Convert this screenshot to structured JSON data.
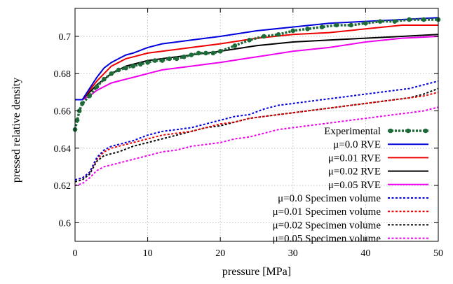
{
  "chart_data": {
    "type": "line",
    "title": "",
    "xlabel": "pressure [MPa]",
    "ylabel": "pressed relative density",
    "xlim": [
      0,
      50
    ],
    "ylim": [
      0.59,
      0.715
    ],
    "xticks": [
      0,
      10,
      20,
      30,
      40,
      50
    ],
    "yticks": [
      0.6,
      0.62,
      0.64,
      0.66,
      0.68,
      0.7
    ],
    "xtick_labels": [
      "0",
      "10",
      "20",
      "30",
      "40",
      "50"
    ],
    "ytick_labels": [
      "0.6",
      "0.62",
      "0.64",
      "0.66",
      "0.68",
      "0.7"
    ],
    "grid": true,
    "legend_position": "bottom-right",
    "series": [
      {
        "name": "Experimental",
        "color": "#1e6b3a",
        "style": "dotted-markers",
        "x": [
          0,
          0.3,
          0.6,
          1,
          2,
          3,
          4,
          5,
          6,
          7,
          8,
          9,
          10,
          11,
          12,
          13,
          14,
          15,
          16,
          17,
          18,
          19,
          20,
          22,
          24,
          26,
          28,
          30,
          32,
          34,
          36,
          38,
          40,
          42,
          44,
          46,
          48,
          50
        ],
        "y": [
          0.65,
          0.655,
          0.66,
          0.664,
          0.668,
          0.673,
          0.677,
          0.68,
          0.682,
          0.683,
          0.684,
          0.685,
          0.686,
          0.687,
          0.687,
          0.688,
          0.688,
          0.689,
          0.69,
          0.691,
          0.691,
          0.691,
          0.692,
          0.695,
          0.698,
          0.7,
          0.701,
          0.703,
          0.704,
          0.705,
          0.706,
          0.706,
          0.707,
          0.708,
          0.708,
          0.709,
          0.709,
          0.709
        ]
      },
      {
        "name": "μ=0.0 RVE",
        "color": "#0000dd",
        "style": "solid",
        "x": [
          0,
          1,
          2,
          3,
          4,
          5,
          6,
          7,
          8,
          10,
          12,
          14,
          16,
          18,
          20,
          25,
          30,
          35,
          40,
          45,
          50
        ],
        "y": [
          0.666,
          0.666,
          0.672,
          0.678,
          0.683,
          0.686,
          0.688,
          0.69,
          0.691,
          0.694,
          0.696,
          0.697,
          0.698,
          0.699,
          0.7,
          0.703,
          0.705,
          0.707,
          0.708,
          0.709,
          0.71
        ]
      },
      {
        "name": "μ=0.01 RVE",
        "color": "#ee0000",
        "style": "solid",
        "x": [
          0,
          1,
          2,
          3,
          4,
          5,
          6,
          7,
          8,
          10,
          12,
          14,
          16,
          18,
          20,
          25,
          30,
          35,
          40,
          45,
          50
        ],
        "y": [
          0.666,
          0.666,
          0.671,
          0.676,
          0.68,
          0.684,
          0.686,
          0.688,
          0.689,
          0.691,
          0.692,
          0.693,
          0.694,
          0.695,
          0.696,
          0.699,
          0.701,
          0.702,
          0.704,
          0.706,
          0.706
        ]
      },
      {
        "name": "μ=0.02 RVE",
        "color": "#000000",
        "style": "solid",
        "x": [
          0,
          1,
          2,
          3,
          4,
          5,
          6,
          7,
          8,
          10,
          12,
          14,
          16,
          18,
          20,
          25,
          30,
          35,
          40,
          45,
          50
        ],
        "y": [
          0.666,
          0.666,
          0.67,
          0.674,
          0.677,
          0.68,
          0.682,
          0.684,
          0.685,
          0.687,
          0.688,
          0.689,
          0.69,
          0.691,
          0.692,
          0.695,
          0.697,
          0.698,
          0.699,
          0.7,
          0.701
        ]
      },
      {
        "name": "μ=0.05 RVE",
        "color": "#ee00ee",
        "style": "solid",
        "x": [
          0,
          1,
          2,
          3,
          4,
          5,
          6,
          7,
          8,
          10,
          12,
          14,
          16,
          18,
          20,
          25,
          30,
          35,
          40,
          45,
          50
        ],
        "y": [
          0.666,
          0.666,
          0.668,
          0.671,
          0.673,
          0.675,
          0.676,
          0.677,
          0.678,
          0.68,
          0.682,
          0.683,
          0.684,
          0.685,
          0.686,
          0.689,
          0.692,
          0.694,
          0.697,
          0.699,
          0.7
        ]
      },
      {
        "name": "μ=0.0 Specimen volume",
        "color": "#0000dd",
        "style": "dotted",
        "x": [
          0,
          1,
          2,
          3,
          4,
          5,
          6,
          8,
          10,
          12,
          14,
          16,
          18,
          20,
          22,
          24,
          26,
          28,
          30,
          32,
          34,
          36,
          38,
          40,
          42,
          44,
          46,
          48,
          50
        ],
        "y": [
          0.623,
          0.624,
          0.627,
          0.635,
          0.639,
          0.641,
          0.642,
          0.644,
          0.647,
          0.649,
          0.65,
          0.651,
          0.653,
          0.655,
          0.657,
          0.658,
          0.661,
          0.663,
          0.664,
          0.665,
          0.666,
          0.667,
          0.668,
          0.669,
          0.67,
          0.671,
          0.672,
          0.674,
          0.676
        ]
      },
      {
        "name": "μ=0.01 Specimen volume",
        "color": "#ee0000",
        "style": "dotted",
        "x": [
          0,
          1,
          2,
          3,
          4,
          5,
          6,
          8,
          10,
          12,
          14,
          16,
          18,
          20,
          22,
          24,
          26,
          28,
          30,
          32,
          34,
          36,
          38,
          40,
          42,
          44,
          46,
          48,
          50
        ],
        "y": [
          0.623,
          0.624,
          0.627,
          0.634,
          0.638,
          0.64,
          0.641,
          0.643,
          0.645,
          0.647,
          0.648,
          0.649,
          0.651,
          0.653,
          0.654,
          0.656,
          0.657,
          0.658,
          0.659,
          0.66,
          0.661,
          0.662,
          0.663,
          0.664,
          0.665,
          0.666,
          0.667,
          0.668,
          0.67
        ]
      },
      {
        "name": "μ=0.02 Specimen volume",
        "color": "#000000",
        "style": "dotted",
        "x": [
          0,
          1,
          2,
          3,
          4,
          5,
          6,
          8,
          10,
          12,
          14,
          16,
          18,
          20,
          22,
          24,
          26,
          28,
          30,
          32,
          34,
          36,
          38,
          40,
          42,
          44,
          46,
          48,
          50
        ],
        "y": [
          0.622,
          0.623,
          0.626,
          0.633,
          0.636,
          0.637,
          0.638,
          0.641,
          0.643,
          0.645,
          0.647,
          0.649,
          0.651,
          0.652,
          0.654,
          0.656,
          0.657,
          0.658,
          0.659,
          0.66,
          0.661,
          0.662,
          0.663,
          0.664,
          0.665,
          0.666,
          0.667,
          0.669,
          0.672
        ]
      },
      {
        "name": "μ=0.05 Specimen volume",
        "color": "#ee00ee",
        "style": "dotted",
        "x": [
          0,
          1,
          2,
          3,
          4,
          5,
          6,
          8,
          10,
          12,
          14,
          16,
          18,
          20,
          22,
          24,
          26,
          28,
          30,
          32,
          34,
          36,
          38,
          40,
          42,
          44,
          46,
          48,
          50
        ],
        "y": [
          0.62,
          0.621,
          0.624,
          0.628,
          0.63,
          0.631,
          0.632,
          0.634,
          0.636,
          0.638,
          0.639,
          0.641,
          0.642,
          0.643,
          0.645,
          0.646,
          0.648,
          0.65,
          0.651,
          0.652,
          0.653,
          0.654,
          0.655,
          0.656,
          0.657,
          0.658,
          0.659,
          0.66,
          0.662
        ]
      }
    ]
  }
}
